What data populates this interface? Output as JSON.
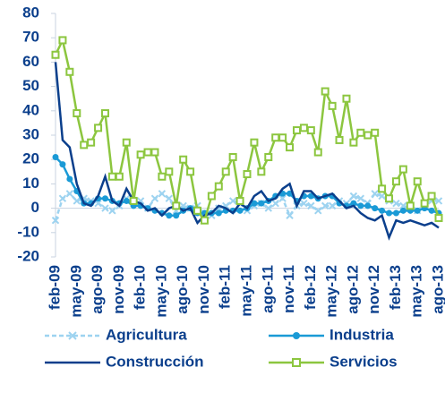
{
  "chart_data": {
    "type": "line",
    "categories": [
      "feb-09",
      null,
      null,
      "may-09",
      null,
      null,
      "ago-09",
      null,
      null,
      "nov-09",
      null,
      null,
      "feb-10",
      null,
      null,
      "may-10",
      null,
      null,
      "ago-10",
      null,
      null,
      "nov-10",
      null,
      null,
      "feb-11",
      null,
      null,
      "may-11",
      null,
      null,
      "ago-11",
      null,
      null,
      "nov-11",
      null,
      null,
      "feb-12",
      null,
      null,
      "may-12",
      null,
      null,
      "ago-12",
      null,
      null,
      "nov-12",
      null,
      null,
      "feb-13",
      null,
      null,
      "may-13",
      null,
      null,
      "ago-13"
    ],
    "series": [
      {
        "name": "Agricultura",
        "color": "#9dd3f0",
        "marker": "x",
        "dash": true,
        "values": [
          -5,
          4,
          6,
          3,
          4,
          3,
          2,
          0,
          -1,
          1,
          4,
          2,
          3,
          0,
          4,
          6,
          4,
          -1,
          1,
          0,
          1,
          -2,
          -3,
          0,
          1,
          3,
          2,
          -1,
          1,
          2,
          0,
          2,
          4,
          -3,
          1,
          2,
          1,
          -1,
          1,
          1,
          3,
          2,
          5,
          4,
          2,
          6,
          5,
          3,
          2,
          1,
          0,
          -1,
          2,
          3,
          3
        ]
      },
      {
        "name": "Industria",
        "color": "#1a9ad6",
        "marker": "circle",
        "dash": false,
        "values": [
          21,
          18,
          12,
          7,
          2,
          2,
          4,
          4,
          3,
          2,
          3,
          1,
          1,
          0,
          -1,
          -2,
          -3,
          -3,
          -1,
          0,
          -2,
          -2,
          -2,
          -2,
          -1,
          -1,
          -1,
          0,
          2,
          2,
          3,
          5,
          6,
          6,
          3,
          5,
          5,
          4,
          5,
          5,
          2,
          1,
          2,
          1,
          1,
          0,
          -1,
          -2,
          -2,
          -1,
          -1,
          -1,
          0,
          -1,
          -2
        ]
      },
      {
        "name": "Construcción",
        "color": "#0b3f8c",
        "marker": "none",
        "dash": false,
        "values": [
          60,
          28,
          25,
          10,
          2,
          1,
          5,
          13,
          3,
          1,
          8,
          3,
          2,
          -1,
          0,
          -3,
          0,
          1,
          -1,
          0,
          -6,
          -3,
          -2,
          1,
          0,
          -2,
          2,
          0,
          5,
          7,
          3,
          4,
          8,
          10,
          1,
          7,
          7,
          4,
          5,
          6,
          3,
          0,
          1,
          -2,
          -4,
          -5,
          -3,
          -12,
          -5,
          -6,
          -5,
          -6,
          -7,
          -6,
          -8
        ]
      },
      {
        "name": "Servicios",
        "color": "#8cc63f",
        "marker": "square",
        "dash": false,
        "values": [
          63,
          69,
          56,
          39,
          26,
          27,
          33,
          39,
          13,
          13,
          27,
          3,
          22,
          23,
          23,
          13,
          15,
          1,
          20,
          15,
          -1,
          -5,
          5,
          9,
          15,
          21,
          3,
          14,
          27,
          15,
          21,
          29,
          29,
          25,
          32,
          33,
          32,
          23,
          48,
          42,
          28,
          45,
          27,
          31,
          30,
          31,
          8,
          4,
          11,
          16,
          1,
          11,
          2,
          5,
          -4
        ]
      }
    ],
    "ylim": [
      -20,
      80
    ],
    "yticks": [
      -20,
      -10,
      0,
      10,
      20,
      30,
      40,
      50,
      60,
      70,
      80
    ]
  }
}
